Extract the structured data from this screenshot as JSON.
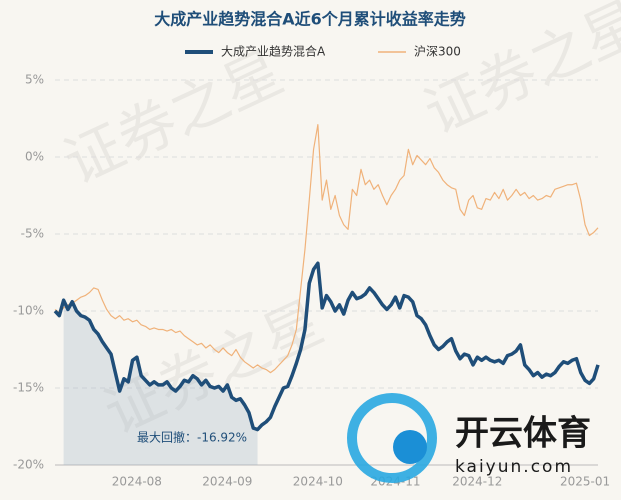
{
  "chart_data": {
    "type": "line",
    "title": "大成产业趋势混合A近6个月累计收益率走势",
    "annotation": "最大回撤：-16.92%",
    "watermark": "证券之星",
    "logo": {
      "name": "开云体育",
      "url": "kaiyun.com"
    },
    "categories": [
      null,
      null,
      null,
      null,
      null,
      null,
      null,
      null,
      null,
      null,
      null,
      null,
      null,
      null,
      null,
      null,
      null,
      null,
      null,
      "2024-08",
      null,
      null,
      null,
      null,
      null,
      null,
      null,
      null,
      null,
      null,
      null,
      null,
      null,
      null,
      null,
      null,
      null,
      null,
      null,
      null,
      "2024-09",
      null,
      null,
      null,
      null,
      null,
      null,
      null,
      null,
      null,
      null,
      null,
      null,
      null,
      null,
      null,
      null,
      null,
      null,
      null,
      null,
      "2024-10",
      null,
      null,
      null,
      null,
      null,
      null,
      null,
      null,
      null,
      null,
      null,
      null,
      null,
      null,
      null,
      null,
      null,
      "2024-11",
      null,
      null,
      null,
      null,
      null,
      null,
      null,
      null,
      null,
      null,
      null,
      null,
      null,
      null,
      null,
      null,
      null,
      null,
      "2024-12",
      null,
      null,
      null,
      null,
      null,
      null,
      null,
      null,
      null,
      null,
      null,
      null,
      null,
      null,
      null,
      null,
      null,
      null,
      null,
      null,
      null,
      null,
      null,
      null,
      "2025-01",
      null,
      null,
      null
    ],
    "series": [
      {
        "name": "大成产业趋势混合A",
        "color": "#1f4e79",
        "values": [
          -10.0,
          -10.3,
          -9.3,
          -9.9,
          -9.4,
          -10.0,
          -10.3,
          -10.4,
          -10.6,
          -11.2,
          -11.5,
          -12.0,
          -12.4,
          -12.8,
          -14.0,
          -15.2,
          -14.4,
          -14.6,
          -13.2,
          -13.0,
          -14.2,
          -14.5,
          -14.8,
          -14.6,
          -14.8,
          -14.8,
          -14.6,
          -15.0,
          -15.2,
          -14.9,
          -14.5,
          -14.6,
          -14.2,
          -14.4,
          -14.8,
          -14.5,
          -14.9,
          -15.0,
          -14.9,
          -15.2,
          -14.8,
          -15.6,
          -15.8,
          -15.7,
          -16.1,
          -16.6,
          -17.6,
          -17.7,
          -17.4,
          -17.2,
          -16.9,
          -16.2,
          -15.6,
          -15.0,
          -14.9,
          -14.2,
          -13.4,
          -12.5,
          -11.2,
          -8.2,
          -7.3,
          -6.9,
          -9.8,
          -9.0,
          -9.4,
          -10.0,
          -9.6,
          -10.2,
          -9.3,
          -8.8,
          -9.2,
          -9.1,
          -8.9,
          -8.5,
          -8.8,
          -9.2,
          -9.6,
          -9.9,
          -9.6,
          -9.1,
          -9.8,
          -9.0,
          -9.1,
          -9.4,
          -10.3,
          -10.5,
          -10.9,
          -11.6,
          -12.2,
          -12.5,
          -12.3,
          -12.0,
          -11.8,
          -12.6,
          -13.1,
          -12.8,
          -12.9,
          -13.5,
          -13.0,
          -13.2,
          -13.0,
          -13.2,
          -13.3,
          -13.2,
          -13.4,
          -12.9,
          -12.8,
          -12.6,
          -12.2,
          -13.5,
          -13.8,
          -14.2,
          -14.0,
          -14.3,
          -14.1,
          -14.2,
          -14.0,
          -13.6,
          -13.3,
          -13.4,
          -13.2,
          -13.1,
          -14.0,
          -14.5,
          -14.7,
          -14.4,
          -13.5
        ]
      },
      {
        "name": "沪深300",
        "color": "#f0b27a",
        "values": [
          -9.9,
          -10.1,
          -9.8,
          -9.6,
          -9.5,
          -9.3,
          -9.1,
          -9.0,
          -8.8,
          -8.5,
          -8.6,
          -9.3,
          -9.9,
          -10.3,
          -10.5,
          -10.3,
          -10.6,
          -10.5,
          -10.7,
          -10.6,
          -10.9,
          -11.0,
          -11.2,
          -11.1,
          -11.2,
          -11.2,
          -11.3,
          -11.2,
          -11.4,
          -11.3,
          -11.6,
          -11.8,
          -12.0,
          -12.2,
          -12.1,
          -12.4,
          -12.2,
          -12.5,
          -12.7,
          -12.4,
          -12.7,
          -12.9,
          -12.5,
          -13.0,
          -13.3,
          -13.5,
          -13.7,
          -13.5,
          -13.7,
          -13.8,
          -14.0,
          -13.8,
          -13.5,
          -13.2,
          -12.9,
          -12.2,
          -11.2,
          -8.6,
          -6.0,
          -2.8,
          0.5,
          2.1,
          -2.8,
          -1.5,
          -3.4,
          -2.5,
          -3.8,
          -4.4,
          -4.7,
          -2.1,
          -2.5,
          -0.8,
          -1.8,
          -1.5,
          -2.1,
          -1.8,
          -2.5,
          -3.1,
          -2.5,
          -2.1,
          -1.5,
          -1.2,
          0.5,
          -0.5,
          0.1,
          -0.2,
          -0.5,
          -0.1,
          -0.7,
          -1.0,
          -1.5,
          -1.8,
          -2.0,
          -2.1,
          -3.4,
          -3.8,
          -2.8,
          -2.5,
          -3.3,
          -3.4,
          -2.7,
          -2.8,
          -2.3,
          -2.7,
          -2.1,
          -2.8,
          -2.5,
          -2.1,
          -2.5,
          -2.3,
          -2.7,
          -2.5,
          -2.8,
          -2.7,
          -2.5,
          -2.6,
          -2.1,
          -2.0,
          -1.9,
          -1.8,
          -1.8,
          -1.7,
          -2.8,
          -4.4,
          -5.1,
          -4.9,
          -4.6
        ]
      }
    ],
    "ylim": [
      -20,
      5
    ],
    "yticks": [
      {
        "value": -20,
        "label": "-20%"
      },
      {
        "value": -15,
        "label": "-15%"
      },
      {
        "value": -10,
        "label": "-10%"
      },
      {
        "value": -5,
        "label": "-5%"
      },
      {
        "value": 0,
        "label": "0%"
      },
      {
        "value": 5,
        "label": "5%"
      }
    ],
    "grid": true
  }
}
